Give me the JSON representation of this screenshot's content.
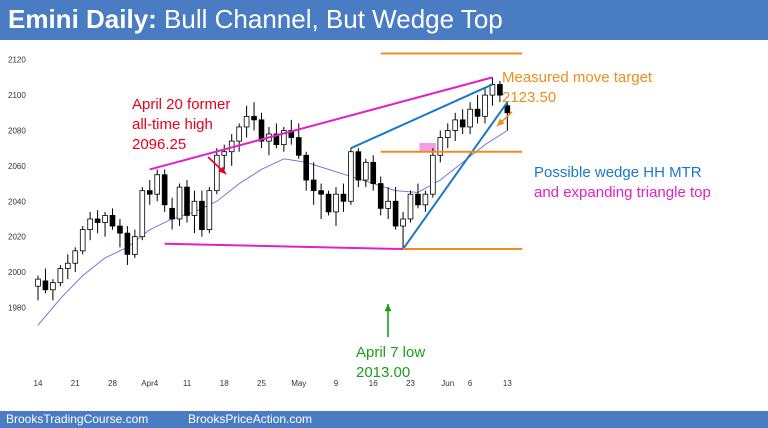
{
  "header": {
    "title_bold": "Emini Daily:",
    "title_rest": " Bull Channel, But Wedge Top"
  },
  "footer": {
    "link_left": "BrooksTradingCourse.com",
    "link_right": "BrooksPriceAction.com"
  },
  "colors": {
    "header_bg": "#4a7cc4",
    "bull_candle": "#ffffff",
    "bear_candle": "#000000",
    "moving_average": "#6a6ad8",
    "red_annotation": "#e8001c",
    "orange_annotation": "#f08c1e",
    "green_annotation": "#1a9e1a",
    "blue_annotation": "#1a78c8",
    "magenta_annotation": "#e020c8"
  },
  "annotations": {
    "april20_line1": "April 20 former",
    "april20_line2": "all-time high",
    "april20_line3": "2096.25",
    "mm_line1": "Measured move target",
    "mm_line2": "2123.50",
    "wedge_line1": "Possible wedge HH MTR",
    "wedge_line2": "and expanding triangle top",
    "april7_line1": "April 7 low",
    "april7_line2": "2013.00"
  },
  "chart_data": {
    "type": "candlestick",
    "ylim": [
      1965,
      2130
    ],
    "yticks": [
      1980,
      2000,
      2020,
      2040,
      2060,
      2080,
      2100,
      2120
    ],
    "xticks": [
      {
        "label": "14",
        "index": 0
      },
      {
        "label": "21",
        "index": 5
      },
      {
        "label": "28",
        "index": 10
      },
      {
        "label": "Apr4",
        "index": 15
      },
      {
        "label": "11",
        "index": 20
      },
      {
        "label": "18",
        "index": 25
      },
      {
        "label": "25",
        "index": 30
      },
      {
        "label": "May",
        "index": 35
      },
      {
        "label": "9",
        "index": 40
      },
      {
        "label": "16",
        "index": 45
      },
      {
        "label": "23",
        "index": 50
      },
      {
        "label": "Jun",
        "index": 55
      },
      {
        "label": "6",
        "index": 58
      },
      {
        "label": "13",
        "index": 63
      }
    ],
    "candles": [
      [
        1992,
        1998,
        1984,
        1996
      ],
      [
        1995,
        2002,
        1988,
        1990
      ],
      [
        1990,
        1996,
        1984,
        1994
      ],
      [
        1994,
        2004,
        1992,
        2002
      ],
      [
        2002,
        2010,
        1996,
        2005
      ],
      [
        2005,
        2014,
        2000,
        2012
      ],
      [
        2012,
        2026,
        2010,
        2024
      ],
      [
        2024,
        2034,
        2018,
        2030
      ],
      [
        2030,
        2035,
        2022,
        2028
      ],
      [
        2028,
        2034,
        2020,
        2032
      ],
      [
        2032,
        2036,
        2024,
        2026
      ],
      [
        2026,
        2030,
        2014,
        2022
      ],
      [
        2022,
        2026,
        2004,
        2010
      ],
      [
        2010,
        2024,
        2008,
        2020
      ],
      [
        2020,
        2048,
        2018,
        2046
      ],
      [
        2046,
        2052,
        2038,
        2044
      ],
      [
        2044,
        2058,
        2040,
        2055
      ],
      [
        2055,
        2058,
        2034,
        2038
      ],
      [
        2036,
        2042,
        2024,
        2030
      ],
      [
        2030,
        2050,
        2026,
        2048
      ],
      [
        2048,
        2052,
        2028,
        2032
      ],
      [
        2032,
        2046,
        2022,
        2040
      ],
      [
        2040,
        2046,
        2020,
        2024
      ],
      [
        2024,
        2048,
        2022,
        2046
      ],
      [
        2046,
        2070,
        2044,
        2066
      ],
      [
        2066,
        2072,
        2058,
        2068
      ],
      [
        2068,
        2078,
        2060,
        2074
      ],
      [
        2074,
        2084,
        2068,
        2082
      ],
      [
        2082,
        2094,
        2076,
        2088
      ],
      [
        2088,
        2096,
        2080,
        2086
      ],
      [
        2086,
        2090,
        2070,
        2074
      ],
      [
        2074,
        2082,
        2066,
        2078
      ],
      [
        2078,
        2084,
        2070,
        2072
      ],
      [
        2072,
        2082,
        2068,
        2080
      ],
      [
        2080,
        2086,
        2072,
        2076
      ],
      [
        2076,
        2084,
        2064,
        2066
      ],
      [
        2066,
        2068,
        2046,
        2052
      ],
      [
        2052,
        2062,
        2038,
        2046
      ],
      [
        2046,
        2050,
        2030,
        2044
      ],
      [
        2044,
        2046,
        2032,
        2034
      ],
      [
        2034,
        2048,
        2026,
        2044
      ],
      [
        2044,
        2050,
        2034,
        2040
      ],
      [
        2040,
        2070,
        2038,
        2068
      ],
      [
        2068,
        2070,
        2048,
        2052
      ],
      [
        2052,
        2064,
        2048,
        2062
      ],
      [
        2062,
        2066,
        2046,
        2050
      ],
      [
        2050,
        2054,
        2032,
        2036
      ],
      [
        2036,
        2048,
        2030,
        2040
      ],
      [
        2040,
        2048,
        2024,
        2026
      ],
      [
        2026,
        2034,
        2013,
        2030
      ],
      [
        2030,
        2046,
        2028,
        2044
      ],
      [
        2044,
        2050,
        2036,
        2038
      ],
      [
        2038,
        2046,
        2034,
        2044
      ],
      [
        2044,
        2070,
        2042,
        2066
      ],
      [
        2066,
        2080,
        2062,
        2076
      ],
      [
        2076,
        2084,
        2070,
        2080
      ],
      [
        2080,
        2090,
        2074,
        2086
      ],
      [
        2086,
        2092,
        2078,
        2082
      ],
      [
        2082,
        2096,
        2078,
        2092
      ],
      [
        2092,
        2100,
        2084,
        2088
      ],
      [
        2088,
        2104,
        2084,
        2100
      ],
      [
        2100,
        2110,
        2094,
        2106
      ],
      [
        2106,
        2108,
        2096,
        2100
      ],
      [
        2094,
        2096,
        2080,
        2090
      ]
    ],
    "moving_average": [
      [
        0,
        1970
      ],
      [
        3,
        1985
      ],
      [
        6,
        1998
      ],
      [
        9,
        2008
      ],
      [
        12,
        2014
      ],
      [
        15,
        2024
      ],
      [
        18,
        2030
      ],
      [
        21,
        2034
      ],
      [
        24,
        2040
      ],
      [
        27,
        2050
      ],
      [
        30,
        2058
      ],
      [
        33,
        2064
      ],
      [
        36,
        2062
      ],
      [
        39,
        2058
      ],
      [
        42,
        2054
      ],
      [
        45,
        2050
      ],
      [
        48,
        2046
      ],
      [
        51,
        2045
      ],
      [
        54,
        2052
      ],
      [
        57,
        2062
      ],
      [
        60,
        2072
      ],
      [
        63,
        2080
      ]
    ],
    "overlays": [
      {
        "name": "upper-channel-line",
        "color": "#e020c8",
        "points": [
          [
            15,
            2058
          ],
          [
            61,
            2110
          ]
        ]
      },
      {
        "name": "lower-channel-line",
        "color": "#e020c8",
        "points": [
          [
            17,
            2016
          ],
          [
            49,
            2013
          ]
        ]
      },
      {
        "name": "wedge-upper-line",
        "color": "#1a78c8",
        "points": [
          [
            42,
            2070
          ],
          [
            61,
            2106
          ]
        ]
      },
      {
        "name": "wedge-trend-line",
        "color": "#1a78c8",
        "points": [
          [
            49,
            2013
          ],
          [
            63,
            2096
          ]
        ]
      },
      {
        "name": "measured-move-target-line",
        "color": "#f08c1e",
        "points": [
          [
            46,
            2123.5
          ],
          [
            65,
            2123.5
          ]
        ]
      },
      {
        "name": "middle-target-line",
        "color": "#f08c1e",
        "points": [
          [
            46,
            2068
          ],
          [
            65,
            2068
          ]
        ]
      },
      {
        "name": "april7-low-line",
        "color": "#f08c1e",
        "points": [
          [
            49,
            2013
          ],
          [
            65,
            2013
          ]
        ]
      }
    ],
    "magenta_box": {
      "x0": 51.2,
      "x1": 53.4,
      "y0": 2068,
      "y1": 2073
    }
  }
}
